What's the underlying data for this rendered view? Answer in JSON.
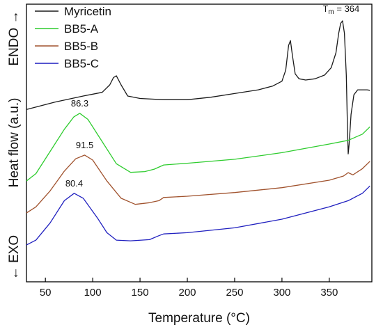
{
  "chart_data": {
    "type": "line",
    "title": "",
    "xlabel": "Temperature (°C)",
    "ylabel": "Heat flow (a.u.)",
    "ylabel_top": "ENDO →",
    "ylabel_bottom": "← EXO",
    "xlim": [
      30,
      395
    ],
    "xticks": [
      50,
      100,
      150,
      200,
      250,
      300,
      350,
      400
    ],
    "ylim": [
      0,
      100
    ],
    "y_ticks_shown": false,
    "grid": false,
    "legend_position": "top-left",
    "series": [
      {
        "name": "Myricetin",
        "color": "#1a1a1a",
        "x": [
          30,
          60,
          90,
          110,
          118,
          122,
          125,
          130,
          137,
          150,
          175,
          200,
          225,
          250,
          275,
          290,
          300,
          304,
          307,
          309,
          311,
          314,
          318,
          325,
          335,
          345,
          352,
          357,
          360,
          362,
          364,
          366,
          368,
          369,
          370,
          371,
          373,
          376,
          380,
          385,
          390,
          393
        ],
        "values": [
          64,
          67,
          69.5,
          71,
          74,
          77,
          77.7,
          74,
          69.5,
          68.5,
          68,
          68,
          69,
          70.5,
          72,
          73.5,
          75.5,
          80,
          90,
          92,
          86,
          78.5,
          76.5,
          76,
          76.5,
          78,
          81,
          87,
          95,
          99,
          100,
          95,
          78,
          60,
          46,
          50,
          62,
          70,
          72,
          72,
          72,
          71.8
        ]
      },
      {
        "name": "BB5-A",
        "color": "#2ecc2e",
        "x": [
          30,
          40,
          55,
          70,
          80,
          86.3,
          95,
          110,
          125,
          140,
          155,
          165,
          175,
          200,
          250,
          300,
          350,
          370,
          385,
          393
        ],
        "values": [
          35,
          38,
          47,
          56,
          61,
          62.5,
          60,
          51,
          42,
          38.5,
          38.8,
          39.8,
          41.5,
          42.2,
          43.8,
          46.5,
          50,
          51.5,
          54,
          57
        ]
      },
      {
        "name": "BB5-B",
        "color": "#a0522d",
        "x": [
          30,
          40,
          55,
          70,
          82,
          91.5,
          100,
          115,
          130,
          145,
          160,
          170,
          175,
          200,
          250,
          300,
          350,
          365,
          370,
          375,
          385,
          393
        ],
        "values": [
          22,
          24.5,
          31,
          39,
          44,
          45.5,
          43.5,
          35,
          28,
          25.5,
          26.2,
          27,
          28.3,
          28.8,
          30.3,
          32.3,
          35.3,
          37,
          38.4,
          37.5,
          40,
          43
        ]
      },
      {
        "name": "BB5-C",
        "color": "#1f1fbf",
        "x": [
          30,
          40,
          55,
          70,
          80.4,
          90,
          105,
          115,
          125,
          140,
          160,
          170,
          175,
          200,
          250,
          300,
          350,
          370,
          385,
          393
        ],
        "values": [
          9,
          11,
          18,
          27,
          30,
          28,
          20,
          14,
          11,
          10.7,
          11.2,
          12.8,
          13.5,
          14,
          16,
          19.5,
          24.5,
          27,
          30,
          33
        ]
      }
    ],
    "annotations": [
      {
        "text_main": "T",
        "text_sub": "m",
        "text_rest": " = 364",
        "x": 364,
        "series": "Myricetin"
      },
      {
        "text": "86.3",
        "x": 86.3,
        "series": "BB5-A"
      },
      {
        "text": "91.5",
        "x": 91.5,
        "series": "BB5-B"
      },
      {
        "text": "80.4",
        "x": 80.4,
        "series": "BB5-C"
      }
    ]
  }
}
